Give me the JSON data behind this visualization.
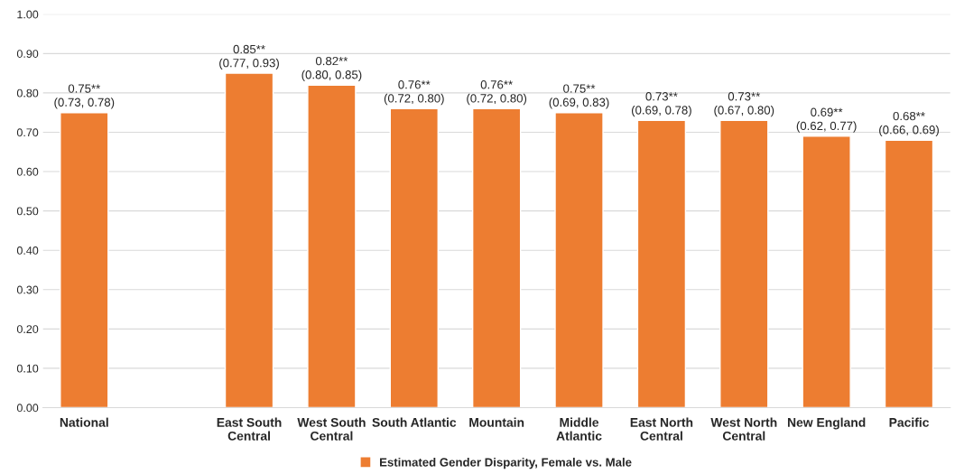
{
  "chart_data": {
    "type": "bar",
    "categories": [
      "National",
      null,
      "East South\nCentral",
      "West South\nCentral",
      "South Atlantic",
      "Mountain",
      "Middle\nAtlantic",
      "East North\nCentral",
      "West North\nCentral",
      "New England",
      "Pacific"
    ],
    "series": [
      {
        "name": "Estimated Gender Disparity, Female vs. Male",
        "color": "#ed7d31",
        "values": [
          0.75,
          null,
          0.85,
          0.82,
          0.76,
          0.76,
          0.75,
          0.73,
          0.73,
          0.69,
          0.68
        ],
        "value_labels": [
          "0.75**\n(0.73, 0.78)",
          null,
          "0.85**\n(0.77, 0.93)",
          "0.82**\n(0.80, 0.85)",
          "0.76**\n(0.72, 0.80)",
          "0.76**\n(0.72, 0.80)",
          "0.75**\n(0.69, 0.83)",
          "0.73**\n(0.69, 0.78)",
          "0.73**\n(0.67, 0.80)",
          "0.69**\n(0.62, 0.77)",
          "0.68**\n(0.66, 0.69)"
        ]
      }
    ],
    "ylim": [
      0,
      1
    ],
    "yticks": [
      {
        "value": 0,
        "label": "0.00"
      },
      {
        "value": 0.1,
        "label": "0.10"
      },
      {
        "value": 0.2,
        "label": "0.20"
      },
      {
        "value": 0.3,
        "label": "0.30"
      },
      {
        "value": 0.4,
        "label": "0.40"
      },
      {
        "value": 0.5,
        "label": "0.50"
      },
      {
        "value": 0.6,
        "label": "0.60"
      },
      {
        "value": 0.7,
        "label": "0.70"
      },
      {
        "value": 0.8,
        "label": "0.80"
      },
      {
        "value": 0.9,
        "label": "0.90"
      },
      {
        "value": 1.0,
        "label": "1.00"
      }
    ],
    "grid": "y",
    "legend": "bottom"
  }
}
